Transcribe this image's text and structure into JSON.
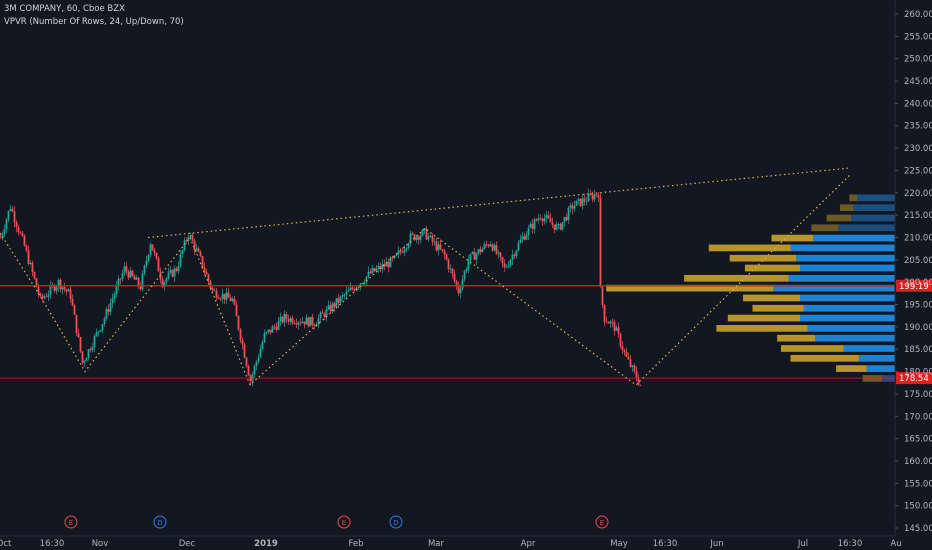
{
  "header": {
    "title": "3M COMPANY, 60, Cboe BZX",
    "indicator": "VPVR (Number Of Rows, 24, Up/Down, 70)"
  },
  "colors": {
    "background": "#131722",
    "up_candle": "#26a69a",
    "down_candle": "#ef5350",
    "profile_up": "#2196f3",
    "profile_down": "#d6ac2b",
    "dotted_lines": "#e0b34a",
    "horizontal_line": "#e01e1e",
    "axis_text": "#b2b5be"
  },
  "price_axis": {
    "min": 145,
    "max": 260,
    "step": 5,
    "labels": [
      "260.00",
      "255.00",
      "250.00",
      "245.00",
      "240.00",
      "235.00",
      "230.00",
      "225.00",
      "220.00",
      "215.00",
      "210.00",
      "205.00",
      "200.00",
      "195.00",
      "190.00",
      "185.00",
      "180.00",
      "175.00",
      "170.00",
      "165.00",
      "160.00",
      "155.00",
      "150.00",
      "145.00"
    ]
  },
  "time_axis": {
    "labels": [
      "Oct",
      "16:30",
      "Nov",
      "Dec",
      "2019",
      "Feb",
      "Mar",
      "Apr",
      "May",
      "16:30",
      "Jun",
      "Jul",
      "16:30",
      "Au"
    ]
  },
  "price_tags": [
    {
      "value": 199.19,
      "label": "199.19"
    },
    {
      "value": 178.54,
      "label": "178.54"
    }
  ],
  "event_markers": [
    {
      "label": "E",
      "kind": "earnings"
    },
    {
      "label": "D",
      "kind": "dividend"
    },
    {
      "label": "E",
      "kind": "earnings"
    },
    {
      "label": "D",
      "kind": "dividend"
    },
    {
      "label": "E",
      "kind": "earnings"
    }
  ],
  "chart_data": {
    "type": "candlestick",
    "title": "3M COMPANY, 60, Cboe BZX",
    "ylim": [
      145,
      260
    ],
    "price_path": [
      {
        "t": 0,
        "p": 210
      },
      {
        "t": 10,
        "p": 217
      },
      {
        "t": 24,
        "p": 208
      },
      {
        "t": 40,
        "p": 196
      },
      {
        "t": 58,
        "p": 200
      },
      {
        "t": 70,
        "p": 197
      },
      {
        "t": 82,
        "p": 182
      },
      {
        "t": 104,
        "p": 192
      },
      {
        "t": 124,
        "p": 203
      },
      {
        "t": 140,
        "p": 199
      },
      {
        "t": 150,
        "p": 209
      },
      {
        "t": 162,
        "p": 200
      },
      {
        "t": 176,
        "p": 203
      },
      {
        "t": 188,
        "p": 211
      },
      {
        "t": 200,
        "p": 205
      },
      {
        "t": 212,
        "p": 198
      },
      {
        "t": 232,
        "p": 196
      },
      {
        "t": 250,
        "p": 178
      },
      {
        "t": 264,
        "p": 188
      },
      {
        "t": 284,
        "p": 192
      },
      {
        "t": 314,
        "p": 191
      },
      {
        "t": 344,
        "p": 197
      },
      {
        "t": 370,
        "p": 202
      },
      {
        "t": 394,
        "p": 205
      },
      {
        "t": 410,
        "p": 210
      },
      {
        "t": 424,
        "p": 211
      },
      {
        "t": 444,
        "p": 206
      },
      {
        "t": 458,
        "p": 198
      },
      {
        "t": 468,
        "p": 205
      },
      {
        "t": 490,
        "p": 209
      },
      {
        "t": 504,
        "p": 203
      },
      {
        "t": 522,
        "p": 210
      },
      {
        "t": 540,
        "p": 215
      },
      {
        "t": 558,
        "p": 212
      },
      {
        "t": 572,
        "p": 217
      },
      {
        "t": 598,
        "p": 220
      },
      {
        "t": 600,
        "p": 198
      },
      {
        "t": 604,
        "p": 192
      },
      {
        "t": 614,
        "p": 190
      },
      {
        "t": 626,
        "p": 183
      },
      {
        "t": 640,
        "p": 177
      }
    ],
    "horizontal_lines": [
      199.19,
      178.54
    ],
    "dotted_lines": [
      [
        {
          "t": 0,
          "p": 211
        },
        {
          "t": 40,
          "p": 197
        },
        {
          "t": 85,
          "p": 180
        },
        {
          "t": 190,
          "p": 210
        },
        {
          "t": 250,
          "p": 177
        },
        {
          "t": 425,
          "p": 212
        },
        {
          "t": 636,
          "p": 177
        },
        {
          "t": 850,
          "p": 224
        }
      ],
      [
        {
          "t": 148,
          "p": 210
        },
        {
          "t": 848,
          "p": 225.5
        }
      ]
    ],
    "volume_profile": {
      "rows": [
        {
          "p": 218.8,
          "up": 0.2,
          "down": 0.04
        },
        {
          "p": 216.6,
          "up": 0.22,
          "down": 0.07
        },
        {
          "p": 214.3,
          "up": 0.23,
          "down": 0.13
        },
        {
          "p": 212.1,
          "up": 0.3,
          "down": 0.14
        },
        {
          "p": 209.8,
          "up": 0.43,
          "down": 0.22
        },
        {
          "p": 207.6,
          "up": 0.55,
          "down": 0.43
        },
        {
          "p": 205.3,
          "up": 0.52,
          "down": 0.35
        },
        {
          "p": 203.1,
          "up": 0.5,
          "down": 0.29
        },
        {
          "p": 200.8,
          "up": 0.56,
          "down": 0.55
        },
        {
          "p": 198.6,
          "up": 0.64,
          "down": 0.88
        },
        {
          "p": 196.4,
          "up": 0.5,
          "down": 0.3
        },
        {
          "p": 194.1,
          "up": 0.48,
          "down": 0.27
        },
        {
          "p": 191.9,
          "up": 0.5,
          "down": 0.38
        },
        {
          "p": 189.6,
          "up": 0.46,
          "down": 0.48
        },
        {
          "p": 187.4,
          "up": 0.42,
          "down": 0.2
        },
        {
          "p": 185.1,
          "up": 0.27,
          "down": 0.33
        },
        {
          "p": 182.9,
          "up": 0.19,
          "down": 0.36
        },
        {
          "p": 180.6,
          "up": 0.15,
          "down": 0.16
        },
        {
          "p": 178.4,
          "up": 0.07,
          "down": 0.1
        }
      ]
    }
  }
}
